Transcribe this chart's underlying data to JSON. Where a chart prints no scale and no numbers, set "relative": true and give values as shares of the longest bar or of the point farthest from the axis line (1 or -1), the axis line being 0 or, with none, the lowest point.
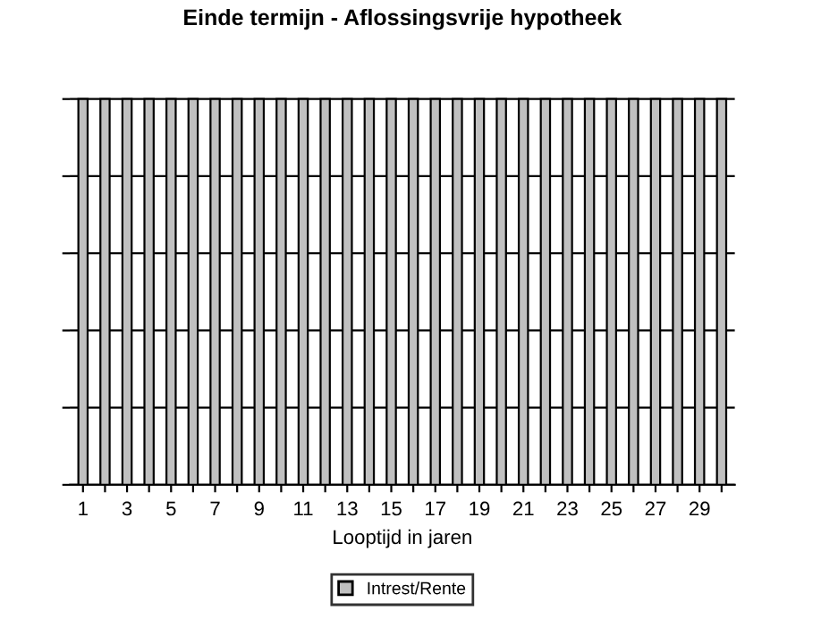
{
  "chart_data": {
    "type": "bar",
    "title": "Einde termijn - Aflossingsvrije hypotheek",
    "xlabel": "Looptijd in jaren",
    "categories": [
      "1",
      null,
      "3",
      null,
      "5",
      null,
      "7",
      null,
      "9",
      null,
      "11",
      null,
      "13",
      null,
      "15",
      null,
      "17",
      null,
      "19",
      null,
      "21",
      null,
      "23",
      null,
      "25",
      null,
      "27",
      null,
      "29",
      null
    ],
    "relative": true,
    "series": [
      {
        "name": "Intrest/Rente",
        "color": "#c0c0c0",
        "values": [
          1,
          1,
          1,
          1,
          1,
          1,
          1,
          1,
          1,
          1,
          1,
          1,
          1,
          1,
          1,
          1,
          1,
          1,
          1,
          1,
          1,
          1,
          1,
          1,
          1,
          1,
          1,
          1,
          1,
          1
        ]
      }
    ],
    "grid": "y",
    "legend": "bottom"
  }
}
